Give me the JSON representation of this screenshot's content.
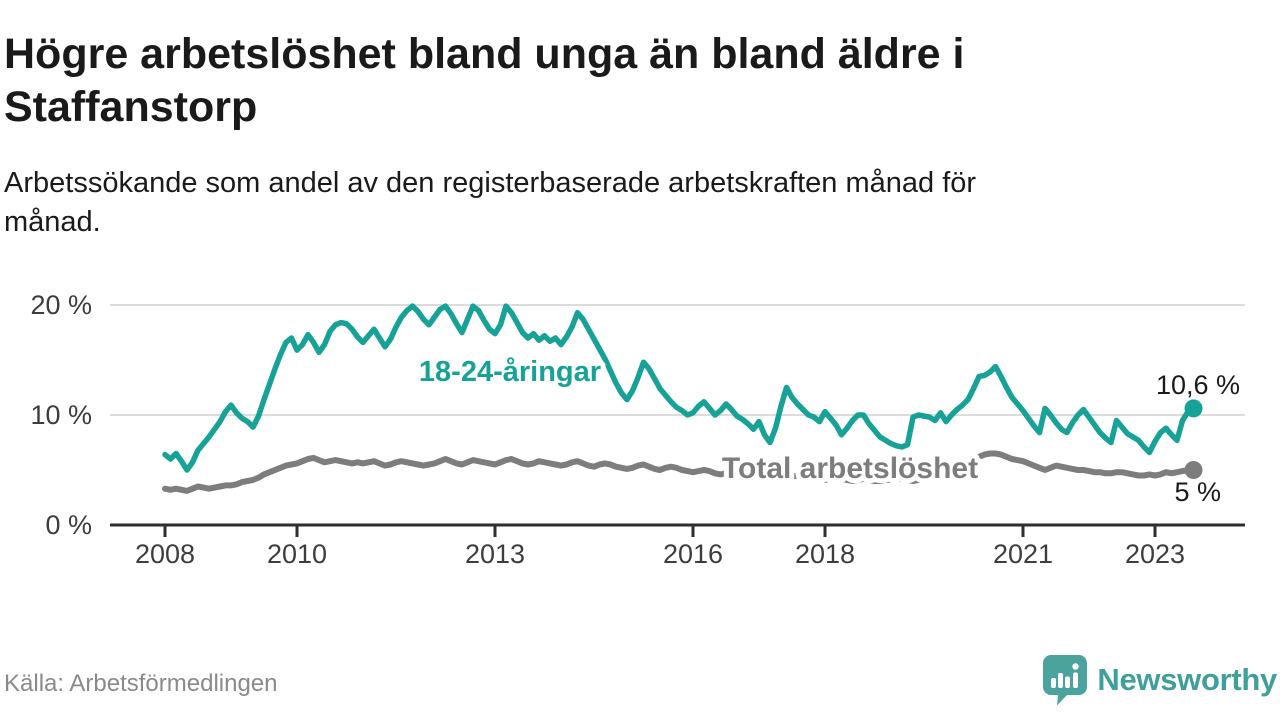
{
  "header": {
    "title": "Högre arbetslöshet bland unga än bland äldre i Staffanstorp",
    "subtitle": "Arbetssökande som andel av den registerbaserade arbetskraften månad för månad."
  },
  "footer": {
    "source": "Källa: Arbetsförmedlingen",
    "brand": "Newsworthy"
  },
  "colors": {
    "young_line": "#16A296",
    "total_line": "#7D7D7D",
    "value_label": "#1A1A1A",
    "axis": "#2E2E2E",
    "tick_label": "#3D3D3D",
    "grid": "#DCDCDC",
    "brand": "#3F9F9A",
    "source_text": "#8A8A8A"
  },
  "chart_data": {
    "type": "line",
    "x_start": "2008-01",
    "x_end": "2023-08",
    "x_unit": "month",
    "x_ticks": [
      "2008",
      "2010",
      "2013",
      "2016",
      "2018",
      "2021",
      "2023"
    ],
    "y_ticks": [
      {
        "value": 0,
        "label": "0 %"
      },
      {
        "value": 10,
        "label": "10 %"
      },
      {
        "value": 20,
        "label": "20 %"
      }
    ],
    "ylim": [
      0,
      22
    ],
    "grid": true,
    "legend_position": "inline-labels",
    "series": [
      {
        "name": "Total arbetslöshet",
        "color": "#7D7D7D",
        "end_label": "5 %",
        "last_value": 5.0,
        "values": [
          3.3,
          3.2,
          3.3,
          3.2,
          3.1,
          3.3,
          3.5,
          3.4,
          3.3,
          3.4,
          3.5,
          3.6,
          3.6,
          3.7,
          3.9,
          4.0,
          4.1,
          4.3,
          4.6,
          4.8,
          5.0,
          5.2,
          5.4,
          5.5,
          5.6,
          5.8,
          6.0,
          6.1,
          5.9,
          5.7,
          5.8,
          5.9,
          5.8,
          5.7,
          5.6,
          5.7,
          5.6,
          5.7,
          5.8,
          5.6,
          5.4,
          5.5,
          5.7,
          5.8,
          5.7,
          5.6,
          5.5,
          5.4,
          5.5,
          5.6,
          5.8,
          6.0,
          5.8,
          5.6,
          5.5,
          5.7,
          5.9,
          5.8,
          5.7,
          5.6,
          5.5,
          5.7,
          5.9,
          6.0,
          5.8,
          5.6,
          5.5,
          5.6,
          5.8,
          5.7,
          5.6,
          5.5,
          5.4,
          5.5,
          5.7,
          5.8,
          5.6,
          5.4,
          5.3,
          5.5,
          5.6,
          5.5,
          5.3,
          5.2,
          5.1,
          5.2,
          5.4,
          5.5,
          5.3,
          5.1,
          5.0,
          5.2,
          5.3,
          5.2,
          5.0,
          4.9,
          4.8,
          4.9,
          5.0,
          4.9,
          4.7,
          4.6,
          4.7,
          4.8,
          4.7,
          4.6,
          4.5,
          4.4,
          4.4,
          4.5,
          4.6,
          4.5,
          4.4,
          4.3,
          4.4,
          4.5,
          4.4,
          4.3,
          4.2,
          4.2,
          4.1,
          4.2,
          4.3,
          4.2,
          4.1,
          4.0,
          4.1,
          4.2,
          4.1,
          4.0,
          4.0,
          4.1,
          4.1,
          4.2,
          4.2,
          4.1,
          4.0,
          4.1,
          4.2,
          4.3,
          4.2,
          4.3,
          4.4,
          4.5,
          4.7,
          4.9,
          5.2,
          5.8,
          6.2,
          6.4,
          6.5,
          6.5,
          6.4,
          6.2,
          6.0,
          5.9,
          5.8,
          5.6,
          5.4,
          5.2,
          5.0,
          5.2,
          5.4,
          5.3,
          5.2,
          5.1,
          5.0,
          5.0,
          4.9,
          4.8,
          4.8,
          4.7,
          4.7,
          4.8,
          4.8,
          4.7,
          4.6,
          4.5,
          4.5,
          4.6,
          4.5,
          4.6,
          4.8,
          4.7,
          4.8,
          4.9,
          5.0,
          5.0
        ]
      },
      {
        "name": "18-24-åringar",
        "color": "#16A296",
        "end_label": "10,6 %",
        "last_value": 10.6,
        "values": [
          6.4,
          6.0,
          6.5,
          5.8,
          5.0,
          5.7,
          6.8,
          7.4,
          8.0,
          8.7,
          9.4,
          10.3,
          10.9,
          10.2,
          9.7,
          9.4,
          8.9,
          9.9,
          11.4,
          12.8,
          14.2,
          15.5,
          16.6,
          17.0,
          15.9,
          16.4,
          17.3,
          16.6,
          15.7,
          16.4,
          17.6,
          18.2,
          18.4,
          18.3,
          17.8,
          17.1,
          16.6,
          17.2,
          17.8,
          17.0,
          16.2,
          16.9,
          18.0,
          18.9,
          19.5,
          19.9,
          19.4,
          18.7,
          18.2,
          18.9,
          19.6,
          19.9,
          19.2,
          18.3,
          17.5,
          18.7,
          19.9,
          19.5,
          18.6,
          17.8,
          17.4,
          18.2,
          19.9,
          19.3,
          18.4,
          17.5,
          17.0,
          17.4,
          16.8,
          17.2,
          16.7,
          17.0,
          16.4,
          17.1,
          18.0,
          19.3,
          18.7,
          17.8,
          16.9,
          16.0,
          15.1,
          14.0,
          12.9,
          12.0,
          11.4,
          12.2,
          13.4,
          14.8,
          14.2,
          13.3,
          12.4,
          11.8,
          11.2,
          10.7,
          10.4,
          10.0,
          10.2,
          10.8,
          11.2,
          10.6,
          10.0,
          10.4,
          11.0,
          10.5,
          9.9,
          9.6,
          9.2,
          8.7,
          9.4,
          8.2,
          7.5,
          8.8,
          10.8,
          12.5,
          11.6,
          11.0,
          10.5,
          10.0,
          9.8,
          9.4,
          10.3,
          9.7,
          9.1,
          8.2,
          8.8,
          9.5,
          10.0,
          10.0,
          9.2,
          8.6,
          8.0,
          7.7,
          7.4,
          7.2,
          7.1,
          7.3,
          9.8,
          10.0,
          9.9,
          9.8,
          9.5,
          10.2,
          9.4,
          10.0,
          10.5,
          10.9,
          11.4,
          12.4,
          13.5,
          13.6,
          13.9,
          14.4,
          13.5,
          12.5,
          11.6,
          11.0,
          10.4,
          9.7,
          9.0,
          8.4,
          10.6,
          10.0,
          9.3,
          8.7,
          8.4,
          9.3,
          10.0,
          10.5,
          9.8,
          9.1,
          8.4,
          7.9,
          7.5,
          9.5,
          8.9,
          8.3,
          8.0,
          7.7,
          7.1,
          6.6,
          7.6,
          8.4,
          8.8,
          8.2,
          7.7,
          9.5,
          10.3,
          10.6
        ]
      }
    ]
  }
}
